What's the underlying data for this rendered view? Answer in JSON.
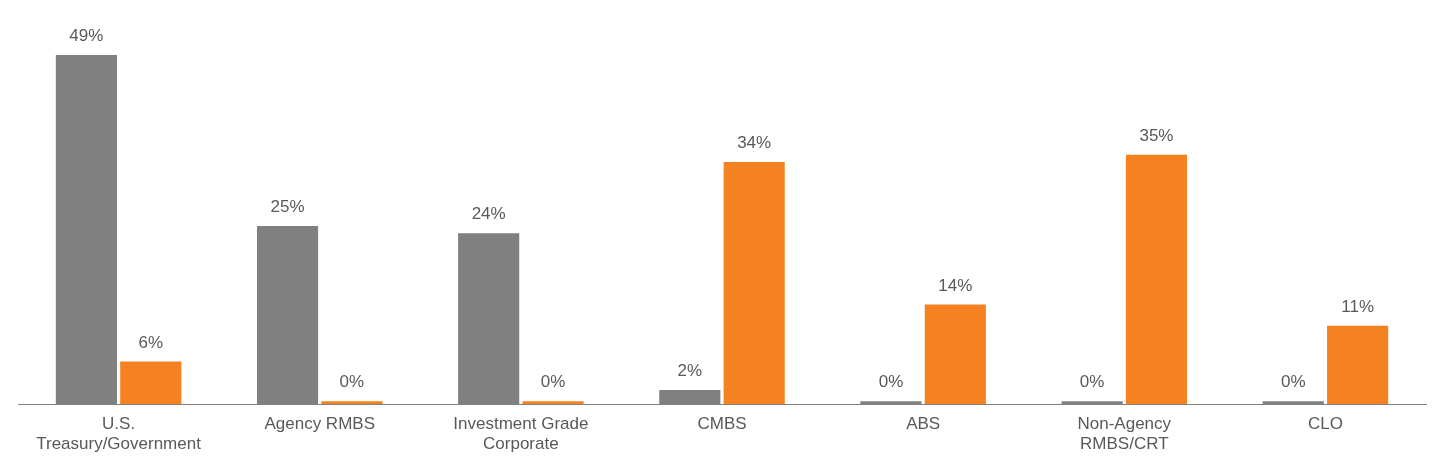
{
  "chart_data": {
    "type": "bar",
    "categories": [
      "U.S. Treasury/Government",
      "Agency RMBS",
      "Investment Grade Corporate",
      "CMBS",
      "ABS",
      "Non-Agency RMBS/CRT",
      "CLO"
    ],
    "series": [
      {
        "color": "#808080",
        "values": [
          49,
          25,
          24,
          2,
          0,
          0,
          0
        ],
        "value_labels": [
          "49%",
          "25%",
          "24%",
          "2%",
          "0%",
          "0%",
          "0%"
        ]
      },
      {
        "color": "#f58220",
        "values": [
          6,
          0,
          0,
          34,
          14,
          35,
          11
        ],
        "value_labels": [
          "6%",
          "0%",
          "0%",
          "34%",
          "14%",
          "35%",
          "11%"
        ]
      }
    ],
    "tick_labels": "x",
    "grid": false,
    "legend": false
  }
}
